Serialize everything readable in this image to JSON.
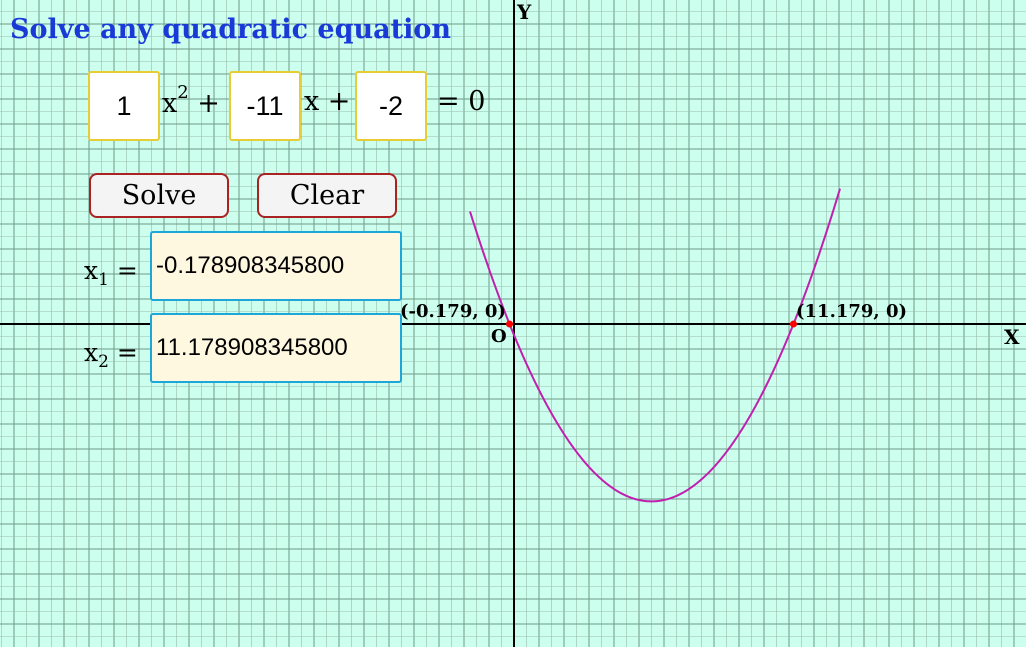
{
  "title": "Solve any quadratic equation",
  "equation": {
    "a": "1",
    "b": "-11",
    "c": "-2",
    "x2_term": "x",
    "x2_exponent": "2",
    "plus1": " +",
    "x_term": "x +",
    "equals": "= 0"
  },
  "buttons": {
    "solve": "Solve",
    "clear": "Clear"
  },
  "results": {
    "x1_label": "x",
    "x1_sub": "1",
    "x2_label": "x",
    "x2_sub": "2",
    "eq_sign": " =",
    "x1_value": "-0.178908345800",
    "x2_value": "11.178908345800"
  },
  "graph": {
    "axis_y_label": "Y",
    "axis_x_label": "X",
    "origin_label": "O",
    "root1_label": "(-0.179, 0)",
    "root2_label": "(11.179, 0)",
    "colors": {
      "background": "#ccffee",
      "grid": "#88aa99",
      "curve": "#c020b0",
      "axis": "#000000",
      "root_point": "#ff0000"
    }
  },
  "chart_data": {
    "type": "line",
    "function": "y = x^2 - 11x - 2",
    "coefficients": {
      "a": 1,
      "b": -11,
      "c": -2
    },
    "roots": [
      -0.179,
      11.179
    ],
    "xlabel": "X",
    "ylabel": "Y"
  }
}
